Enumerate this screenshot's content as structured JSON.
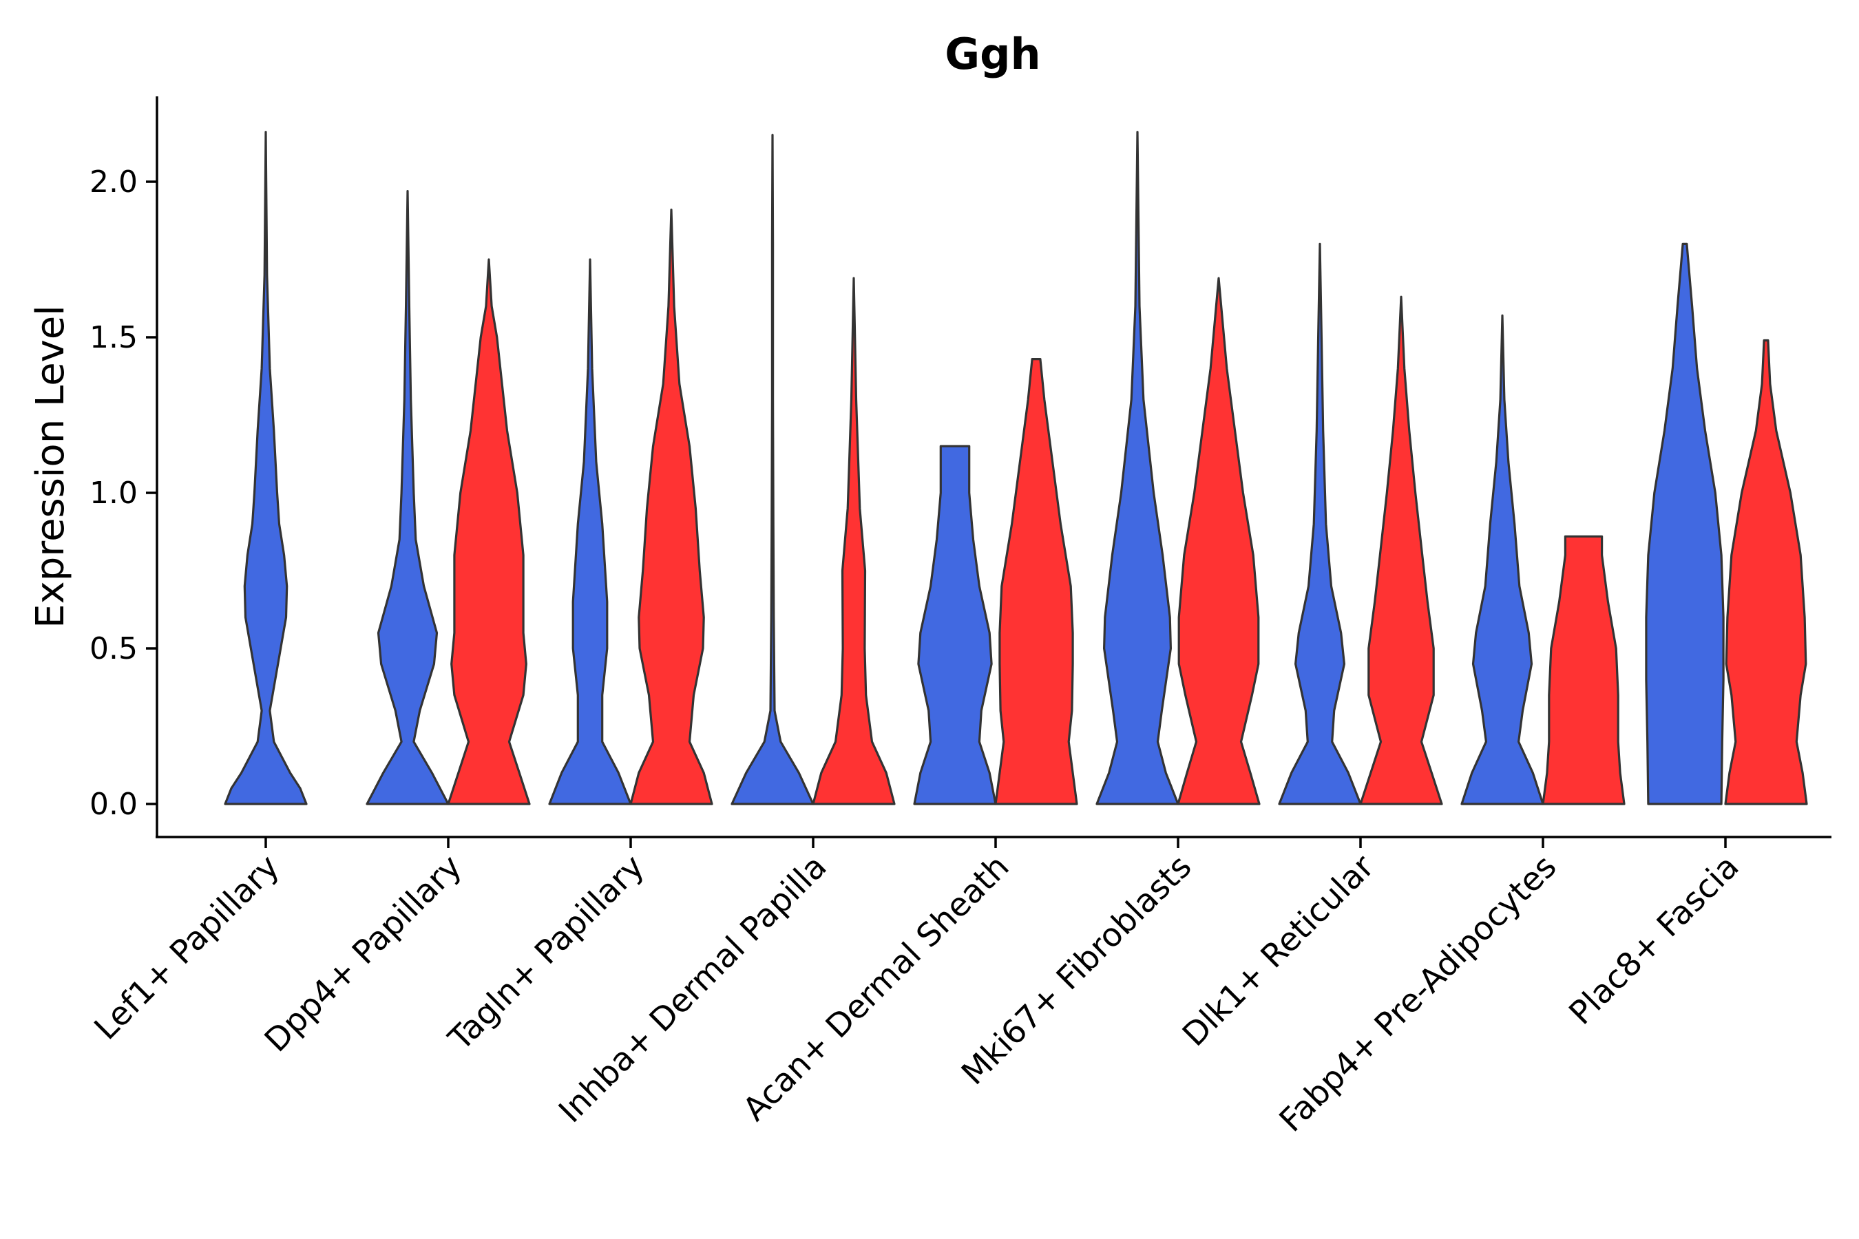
{
  "chart_data": {
    "type": "violin",
    "title": "Ggh",
    "xlabel": "",
    "ylabel": "Expression Level",
    "ylim": [
      -0.11,
      2.27
    ],
    "yticks": [
      "0.0",
      "0.5",
      "1.0",
      "1.5",
      "2.0"
    ],
    "ytick_values": [
      0.0,
      0.5,
      1.0,
      1.5,
      2.0
    ],
    "series_colors": {
      "group1": "#4169E1",
      "group2": "#FF3333"
    },
    "categories": [
      "Lef1+ Papillary",
      "Dpp4+ Papillary",
      "Tagln+ Papillary",
      "Inhba+ Dermal Papilla",
      "Acan+ Dermal Sheath",
      "Mki67+ Fibroblasts",
      "Dlk1+ Reticular",
      "Fabp4+ Pre-Adipocytes",
      "Plac8+ Fascia"
    ],
    "violins": [
      {
        "category": 0,
        "group": "group1",
        "max": 2.16,
        "profile": [
          [
            0,
            1.0
          ],
          [
            0.05,
            0.85
          ],
          [
            0.1,
            0.6
          ],
          [
            0.2,
            0.2
          ],
          [
            0.3,
            0.1
          ],
          [
            0.45,
            0.3
          ],
          [
            0.6,
            0.5
          ],
          [
            0.7,
            0.52
          ],
          [
            0.8,
            0.45
          ],
          [
            0.9,
            0.33
          ],
          [
            1.0,
            0.28
          ],
          [
            1.2,
            0.2
          ],
          [
            1.4,
            0.1
          ],
          [
            1.7,
            0.03
          ],
          [
            2.16,
            0.0
          ]
        ]
      },
      {
        "category": 1,
        "group": "group1",
        "max": 1.97,
        "profile": [
          [
            0,
            1.0
          ],
          [
            0.1,
            0.6
          ],
          [
            0.2,
            0.15
          ],
          [
            0.3,
            0.3
          ],
          [
            0.45,
            0.65
          ],
          [
            0.55,
            0.72
          ],
          [
            0.7,
            0.4
          ],
          [
            0.85,
            0.2
          ],
          [
            1.0,
            0.15
          ],
          [
            1.3,
            0.08
          ],
          [
            1.6,
            0.04
          ],
          [
            1.97,
            0.0
          ]
        ]
      },
      {
        "category": 1,
        "group": "group2",
        "max": 1.75,
        "profile": [
          [
            0,
            1.0
          ],
          [
            0.1,
            0.75
          ],
          [
            0.2,
            0.5
          ],
          [
            0.35,
            0.85
          ],
          [
            0.45,
            0.92
          ],
          [
            0.55,
            0.85
          ],
          [
            0.65,
            0.85
          ],
          [
            0.8,
            0.85
          ],
          [
            1.0,
            0.7
          ],
          [
            1.2,
            0.45
          ],
          [
            1.5,
            0.2
          ],
          [
            1.6,
            0.07
          ],
          [
            1.75,
            0.0
          ]
        ]
      },
      {
        "category": 2,
        "group": "group1",
        "max": 1.75,
        "profile": [
          [
            0,
            1.0
          ],
          [
            0.1,
            0.7
          ],
          [
            0.2,
            0.3
          ],
          [
            0.35,
            0.3
          ],
          [
            0.5,
            0.42
          ],
          [
            0.65,
            0.42
          ],
          [
            0.9,
            0.3
          ],
          [
            1.1,
            0.15
          ],
          [
            1.4,
            0.05
          ],
          [
            1.75,
            0.0
          ]
        ]
      },
      {
        "category": 2,
        "group": "group2",
        "max": 1.91,
        "profile": [
          [
            0,
            1.0
          ],
          [
            0.1,
            0.8
          ],
          [
            0.2,
            0.45
          ],
          [
            0.35,
            0.55
          ],
          [
            0.5,
            0.78
          ],
          [
            0.6,
            0.8
          ],
          [
            0.75,
            0.7
          ],
          [
            0.95,
            0.6
          ],
          [
            1.15,
            0.45
          ],
          [
            1.35,
            0.2
          ],
          [
            1.6,
            0.07
          ],
          [
            1.91,
            0.0
          ]
        ]
      },
      {
        "category": 3,
        "group": "group1",
        "max": 2.15,
        "profile": [
          [
            0,
            1.0
          ],
          [
            0.1,
            0.65
          ],
          [
            0.2,
            0.2
          ],
          [
            0.3,
            0.05
          ],
          [
            0.6,
            0.03
          ],
          [
            0.9,
            0.02
          ],
          [
            1.3,
            0.01
          ],
          [
            1.8,
            0.01
          ],
          [
            2.15,
            0.0
          ]
        ]
      },
      {
        "category": 3,
        "group": "group2",
        "max": 1.69,
        "profile": [
          [
            0,
            1.0
          ],
          [
            0.1,
            0.8
          ],
          [
            0.2,
            0.45
          ],
          [
            0.35,
            0.3
          ],
          [
            0.5,
            0.27
          ],
          [
            0.75,
            0.28
          ],
          [
            0.95,
            0.15
          ],
          [
            1.3,
            0.06
          ],
          [
            1.69,
            0.0
          ]
        ]
      },
      {
        "category": 4,
        "group": "group1",
        "max": 1.15,
        "profile": [
          [
            0,
            1.0
          ],
          [
            0.1,
            0.85
          ],
          [
            0.2,
            0.6
          ],
          [
            0.3,
            0.65
          ],
          [
            0.45,
            0.9
          ],
          [
            0.55,
            0.85
          ],
          [
            0.7,
            0.6
          ],
          [
            0.85,
            0.45
          ],
          [
            1.0,
            0.35
          ],
          [
            1.15,
            0.35
          ]
        ]
      },
      {
        "category": 4,
        "group": "group2",
        "max": 1.43,
        "profile": [
          [
            0,
            1.0
          ],
          [
            0.1,
            0.9
          ],
          [
            0.2,
            0.8
          ],
          [
            0.3,
            0.88
          ],
          [
            0.45,
            0.9
          ],
          [
            0.55,
            0.9
          ],
          [
            0.7,
            0.85
          ],
          [
            0.9,
            0.6
          ],
          [
            1.1,
            0.4
          ],
          [
            1.3,
            0.2
          ],
          [
            1.43,
            0.1
          ]
        ]
      },
      {
        "category": 5,
        "group": "group1",
        "max": 2.16,
        "profile": [
          [
            0,
            1.0
          ],
          [
            0.1,
            0.7
          ],
          [
            0.2,
            0.5
          ],
          [
            0.3,
            0.6
          ],
          [
            0.5,
            0.82
          ],
          [
            0.6,
            0.8
          ],
          [
            0.8,
            0.62
          ],
          [
            1.0,
            0.4
          ],
          [
            1.3,
            0.15
          ],
          [
            1.6,
            0.05
          ],
          [
            2.16,
            0.0
          ]
        ]
      },
      {
        "category": 5,
        "group": "group2",
        "max": 1.69,
        "profile": [
          [
            0,
            1.0
          ],
          [
            0.1,
            0.78
          ],
          [
            0.2,
            0.55
          ],
          [
            0.35,
            0.82
          ],
          [
            0.45,
            0.98
          ],
          [
            0.6,
            0.98
          ],
          [
            0.8,
            0.85
          ],
          [
            1.0,
            0.6
          ],
          [
            1.2,
            0.4
          ],
          [
            1.4,
            0.2
          ],
          [
            1.69,
            0.0
          ]
        ]
      },
      {
        "category": 6,
        "group": "group1",
        "max": 1.8,
        "profile": [
          [
            0,
            1.0
          ],
          [
            0.1,
            0.7
          ],
          [
            0.2,
            0.3
          ],
          [
            0.3,
            0.35
          ],
          [
            0.45,
            0.6
          ],
          [
            0.55,
            0.52
          ],
          [
            0.7,
            0.28
          ],
          [
            0.9,
            0.15
          ],
          [
            1.2,
            0.08
          ],
          [
            1.5,
            0.04
          ],
          [
            1.8,
            0.0
          ]
        ]
      },
      {
        "category": 6,
        "group": "group2",
        "max": 1.63,
        "profile": [
          [
            0,
            1.0
          ],
          [
            0.1,
            0.75
          ],
          [
            0.2,
            0.5
          ],
          [
            0.35,
            0.8
          ],
          [
            0.5,
            0.8
          ],
          [
            0.65,
            0.65
          ],
          [
            0.8,
            0.52
          ],
          [
            1.0,
            0.35
          ],
          [
            1.2,
            0.2
          ],
          [
            1.4,
            0.08
          ],
          [
            1.63,
            0.0
          ]
        ]
      },
      {
        "category": 7,
        "group": "group1",
        "max": 1.57,
        "profile": [
          [
            0,
            1.0
          ],
          [
            0.1,
            0.75
          ],
          [
            0.2,
            0.4
          ],
          [
            0.3,
            0.5
          ],
          [
            0.45,
            0.72
          ],
          [
            0.55,
            0.65
          ],
          [
            0.7,
            0.42
          ],
          [
            0.9,
            0.3
          ],
          [
            1.1,
            0.15
          ],
          [
            1.3,
            0.05
          ],
          [
            1.57,
            0.0
          ]
        ]
      },
      {
        "category": 7,
        "group": "group2",
        "max": 0.86,
        "profile": [
          [
            0,
            1.0
          ],
          [
            0.1,
            0.9
          ],
          [
            0.2,
            0.85
          ],
          [
            0.35,
            0.85
          ],
          [
            0.5,
            0.8
          ],
          [
            0.65,
            0.6
          ],
          [
            0.8,
            0.45
          ],
          [
            0.86,
            0.45
          ]
        ]
      },
      {
        "category": 8,
        "group": "group1",
        "max": 1.8,
        "profile": [
          [
            0,
            0.9
          ],
          [
            0.2,
            0.92
          ],
          [
            0.4,
            0.95
          ],
          [
            0.6,
            0.95
          ],
          [
            0.8,
            0.9
          ],
          [
            1.0,
            0.75
          ],
          [
            1.2,
            0.5
          ],
          [
            1.4,
            0.3
          ],
          [
            1.6,
            0.18
          ],
          [
            1.8,
            0.05
          ]
        ]
      },
      {
        "category": 8,
        "group": "group2",
        "max": 1.49,
        "profile": [
          [
            0,
            1.0
          ],
          [
            0.1,
            0.9
          ],
          [
            0.2,
            0.75
          ],
          [
            0.35,
            0.85
          ],
          [
            0.45,
            0.98
          ],
          [
            0.6,
            0.95
          ],
          [
            0.8,
            0.85
          ],
          [
            1.0,
            0.6
          ],
          [
            1.2,
            0.25
          ],
          [
            1.35,
            0.1
          ],
          [
            1.49,
            0.05
          ]
        ]
      }
    ]
  }
}
